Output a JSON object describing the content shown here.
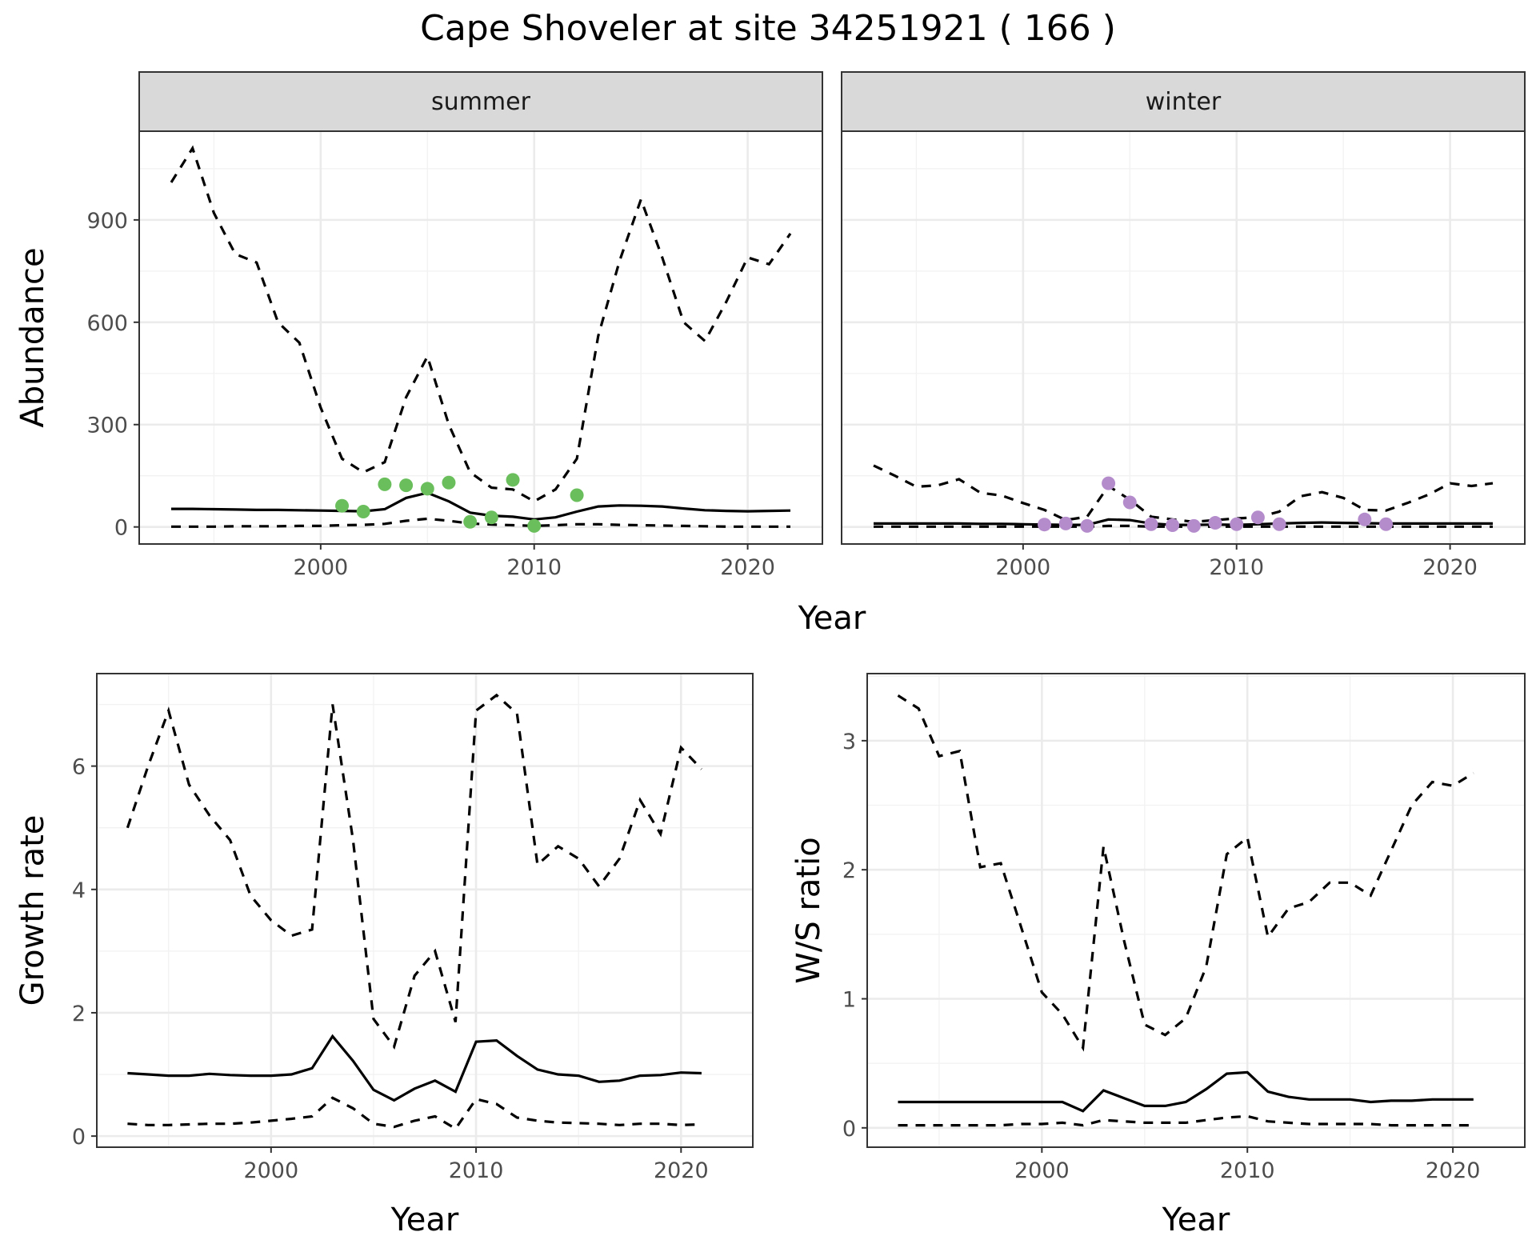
{
  "title": "Cape Shoveler at site 34251921 ( 166 )",
  "colors": {
    "summer_points": "#6abf5c",
    "winter_points": "#b48ccc",
    "lines": "#000000",
    "strip": "#d9d9d9",
    "grid": "#ebebeb"
  },
  "chart_data": [
    {
      "type": "line",
      "facet": "summer",
      "strip_label": "summer",
      "xlabel": "Year",
      "ylabel": "Abundance",
      "xlim": [
        1991.5,
        2023.5
      ],
      "ylim": [
        -50,
        1160
      ],
      "xticks": [
        2000,
        2010,
        2020
      ],
      "yticks": [
        0,
        300,
        600,
        900
      ],
      "grid": true,
      "x": [
        1993,
        1994,
        1995,
        1996,
        1997,
        1998,
        1999,
        2000,
        2001,
        2002,
        2003,
        2004,
        2005,
        2006,
        2007,
        2008,
        2009,
        2010,
        2011,
        2012,
        2013,
        2014,
        2015,
        2016,
        2017,
        2018,
        2019,
        2020,
        2021,
        2022
      ],
      "series": [
        {
          "role": "estimate",
          "style": "solid",
          "values": [
            53,
            53,
            52,
            51,
            50,
            50,
            49,
            48,
            47,
            46,
            52,
            85,
            100,
            75,
            42,
            33,
            30,
            22,
            28,
            45,
            60,
            63,
            62,
            60,
            54,
            49,
            47,
            46,
            47,
            48
          ]
        },
        {
          "role": "upper",
          "style": "dashed",
          "values": [
            1010,
            1110,
            920,
            800,
            775,
            600,
            540,
            350,
            200,
            160,
            190,
            380,
            500,
            300,
            160,
            115,
            110,
            75,
            110,
            200,
            560,
            780,
            960,
            790,
            600,
            545,
            660,
            790,
            770,
            860
          ]
        },
        {
          "role": "lower",
          "style": "dashed",
          "values": [
            1,
            1,
            1,
            2,
            2,
            2,
            3,
            3,
            5,
            6,
            9,
            18,
            24,
            18,
            10,
            7,
            5,
            3,
            5,
            8,
            8,
            6,
            5,
            4,
            3,
            2,
            1,
            1,
            1,
            1
          ]
        }
      ],
      "points": {
        "x": [
          2001,
          2002,
          2003,
          2004,
          2005,
          2006,
          2007,
          2008,
          2009,
          2010,
          2012
        ],
        "y": [
          62,
          45,
          125,
          122,
          112,
          130,
          15,
          28,
          138,
          3,
          93
        ]
      }
    },
    {
      "type": "line",
      "facet": "winter",
      "strip_label": "winter",
      "xlabel": "Year",
      "ylabel": "Abundance",
      "xlim": [
        1991.5,
        2023.5
      ],
      "ylim": [
        -50,
        1160
      ],
      "xticks": [
        2000,
        2010,
        2020
      ],
      "yticks": [
        0,
        300,
        600,
        900
      ],
      "grid": true,
      "x": [
        1993,
        1994,
        1995,
        1996,
        1997,
        1998,
        1999,
        2000,
        2001,
        2002,
        2003,
        2004,
        2005,
        2006,
        2007,
        2008,
        2009,
        2010,
        2011,
        2012,
        2013,
        2014,
        2015,
        2016,
        2017,
        2018,
        2019,
        2020,
        2021,
        2022
      ],
      "series": [
        {
          "role": "estimate",
          "style": "solid",
          "values": [
            10,
            10,
            10,
            10,
            10,
            9,
            9,
            8,
            7,
            6,
            6,
            22,
            20,
            10,
            6,
            6,
            7,
            6,
            8,
            10,
            12,
            13,
            12,
            11,
            10,
            10,
            10,
            10,
            10,
            10
          ]
        },
        {
          "role": "upper",
          "style": "dashed",
          "values": [
            180,
            150,
            118,
            122,
            140,
            100,
            92,
            70,
            50,
            20,
            30,
            120,
            80,
            30,
            22,
            15,
            20,
            25,
            28,
            45,
            90,
            102,
            85,
            50,
            48,
            70,
            95,
            128,
            120,
            128
          ]
        },
        {
          "role": "lower",
          "style": "dashed",
          "values": [
            1,
            1,
            1,
            1,
            1,
            1,
            1,
            1,
            1,
            1,
            1,
            3,
            3,
            1,
            1,
            1,
            1,
            1,
            1,
            1,
            1,
            1,
            1,
            1,
            1,
            1,
            1,
            1,
            1,
            1
          ]
        }
      ],
      "points": {
        "x": [
          2001,
          2002,
          2003,
          2004,
          2005,
          2006,
          2007,
          2008,
          2009,
          2010,
          2011,
          2012,
          2016,
          2017
        ],
        "y": [
          7,
          10,
          3,
          128,
          72,
          8,
          5,
          3,
          12,
          8,
          28,
          8,
          22,
          8
        ]
      }
    },
    {
      "type": "line",
      "xlabel": "Year",
      "ylabel": "Growth rate",
      "xlim": [
        1991.5,
        2023.5
      ],
      "ylim": [
        -0.18,
        7.5
      ],
      "xticks": [
        2000,
        2010,
        2020
      ],
      "yticks": [
        0,
        2,
        4,
        6
      ],
      "grid": true,
      "x": [
        1993,
        1994,
        1995,
        1996,
        1997,
        1998,
        1999,
        2000,
        2001,
        2002,
        2003,
        2004,
        2005,
        2006,
        2007,
        2008,
        2009,
        2010,
        2011,
        2012,
        2013,
        2014,
        2015,
        2016,
        2017,
        2018,
        2019,
        2020,
        2021
      ],
      "series": [
        {
          "role": "estimate",
          "style": "solid",
          "values": [
            1.02,
            1.0,
            0.98,
            0.98,
            1.01,
            0.99,
            0.98,
            0.98,
            1.0,
            1.1,
            1.62,
            1.22,
            0.75,
            0.58,
            0.77,
            0.9,
            0.72,
            1.53,
            1.55,
            1.3,
            1.08,
            1.0,
            0.98,
            0.88,
            0.9,
            0.98,
            0.99,
            1.03,
            1.02
          ]
        },
        {
          "role": "upper",
          "style": "dashed",
          "values": [
            5.0,
            6.0,
            6.9,
            5.7,
            5.2,
            4.8,
            3.9,
            3.5,
            3.25,
            3.35,
            7.0,
            4.8,
            1.9,
            1.45,
            2.6,
            3.0,
            1.85,
            6.9,
            7.15,
            6.85,
            4.4,
            4.7,
            4.5,
            4.05,
            4.5,
            5.45,
            4.9,
            6.3,
            5.95
          ]
        },
        {
          "role": "lower",
          "style": "dashed",
          "values": [
            0.2,
            0.18,
            0.18,
            0.19,
            0.2,
            0.2,
            0.22,
            0.25,
            0.28,
            0.32,
            0.62,
            0.45,
            0.2,
            0.15,
            0.25,
            0.32,
            0.12,
            0.6,
            0.52,
            0.3,
            0.25,
            0.22,
            0.21,
            0.2,
            0.18,
            0.2,
            0.2,
            0.18,
            0.19
          ]
        }
      ]
    },
    {
      "type": "line",
      "xlabel": "Year",
      "ylabel": "W/S ratio",
      "xlim": [
        1991.5,
        2023.5
      ],
      "ylim": [
        -0.15,
        3.52
      ],
      "xticks": [
        2000,
        2010,
        2020
      ],
      "yticks": [
        0,
        1,
        2,
        3
      ],
      "grid": true,
      "x": [
        1993,
        1994,
        1995,
        1996,
        1997,
        1998,
        1999,
        2000,
        2001,
        2002,
        2003,
        2004,
        2005,
        2006,
        2007,
        2008,
        2009,
        2010,
        2011,
        2012,
        2013,
        2014,
        2015,
        2016,
        2017,
        2018,
        2019,
        2020,
        2021
      ],
      "series": [
        {
          "role": "estimate",
          "style": "solid",
          "values": [
            0.2,
            0.2,
            0.2,
            0.2,
            0.2,
            0.2,
            0.2,
            0.2,
            0.2,
            0.13,
            0.29,
            0.23,
            0.17,
            0.17,
            0.2,
            0.3,
            0.42,
            0.43,
            0.28,
            0.24,
            0.22,
            0.22,
            0.22,
            0.2,
            0.21,
            0.21,
            0.22,
            0.22,
            0.22
          ]
        },
        {
          "role": "upper",
          "style": "dashed",
          "values": [
            3.35,
            3.25,
            2.88,
            2.92,
            2.02,
            2.05,
            1.55,
            1.05,
            0.88,
            0.62,
            2.18,
            1.45,
            0.8,
            0.72,
            0.85,
            1.25,
            2.12,
            2.25,
            1.48,
            1.7,
            1.75,
            1.9,
            1.9,
            1.8,
            2.15,
            2.5,
            2.68,
            2.65,
            2.75
          ]
        },
        {
          "role": "lower",
          "style": "dashed",
          "values": [
            0.02,
            0.02,
            0.02,
            0.02,
            0.02,
            0.02,
            0.03,
            0.03,
            0.04,
            0.02,
            0.06,
            0.05,
            0.04,
            0.04,
            0.04,
            0.06,
            0.08,
            0.09,
            0.05,
            0.04,
            0.03,
            0.03,
            0.03,
            0.03,
            0.02,
            0.02,
            0.02,
            0.02,
            0.02
          ]
        }
      ]
    }
  ]
}
